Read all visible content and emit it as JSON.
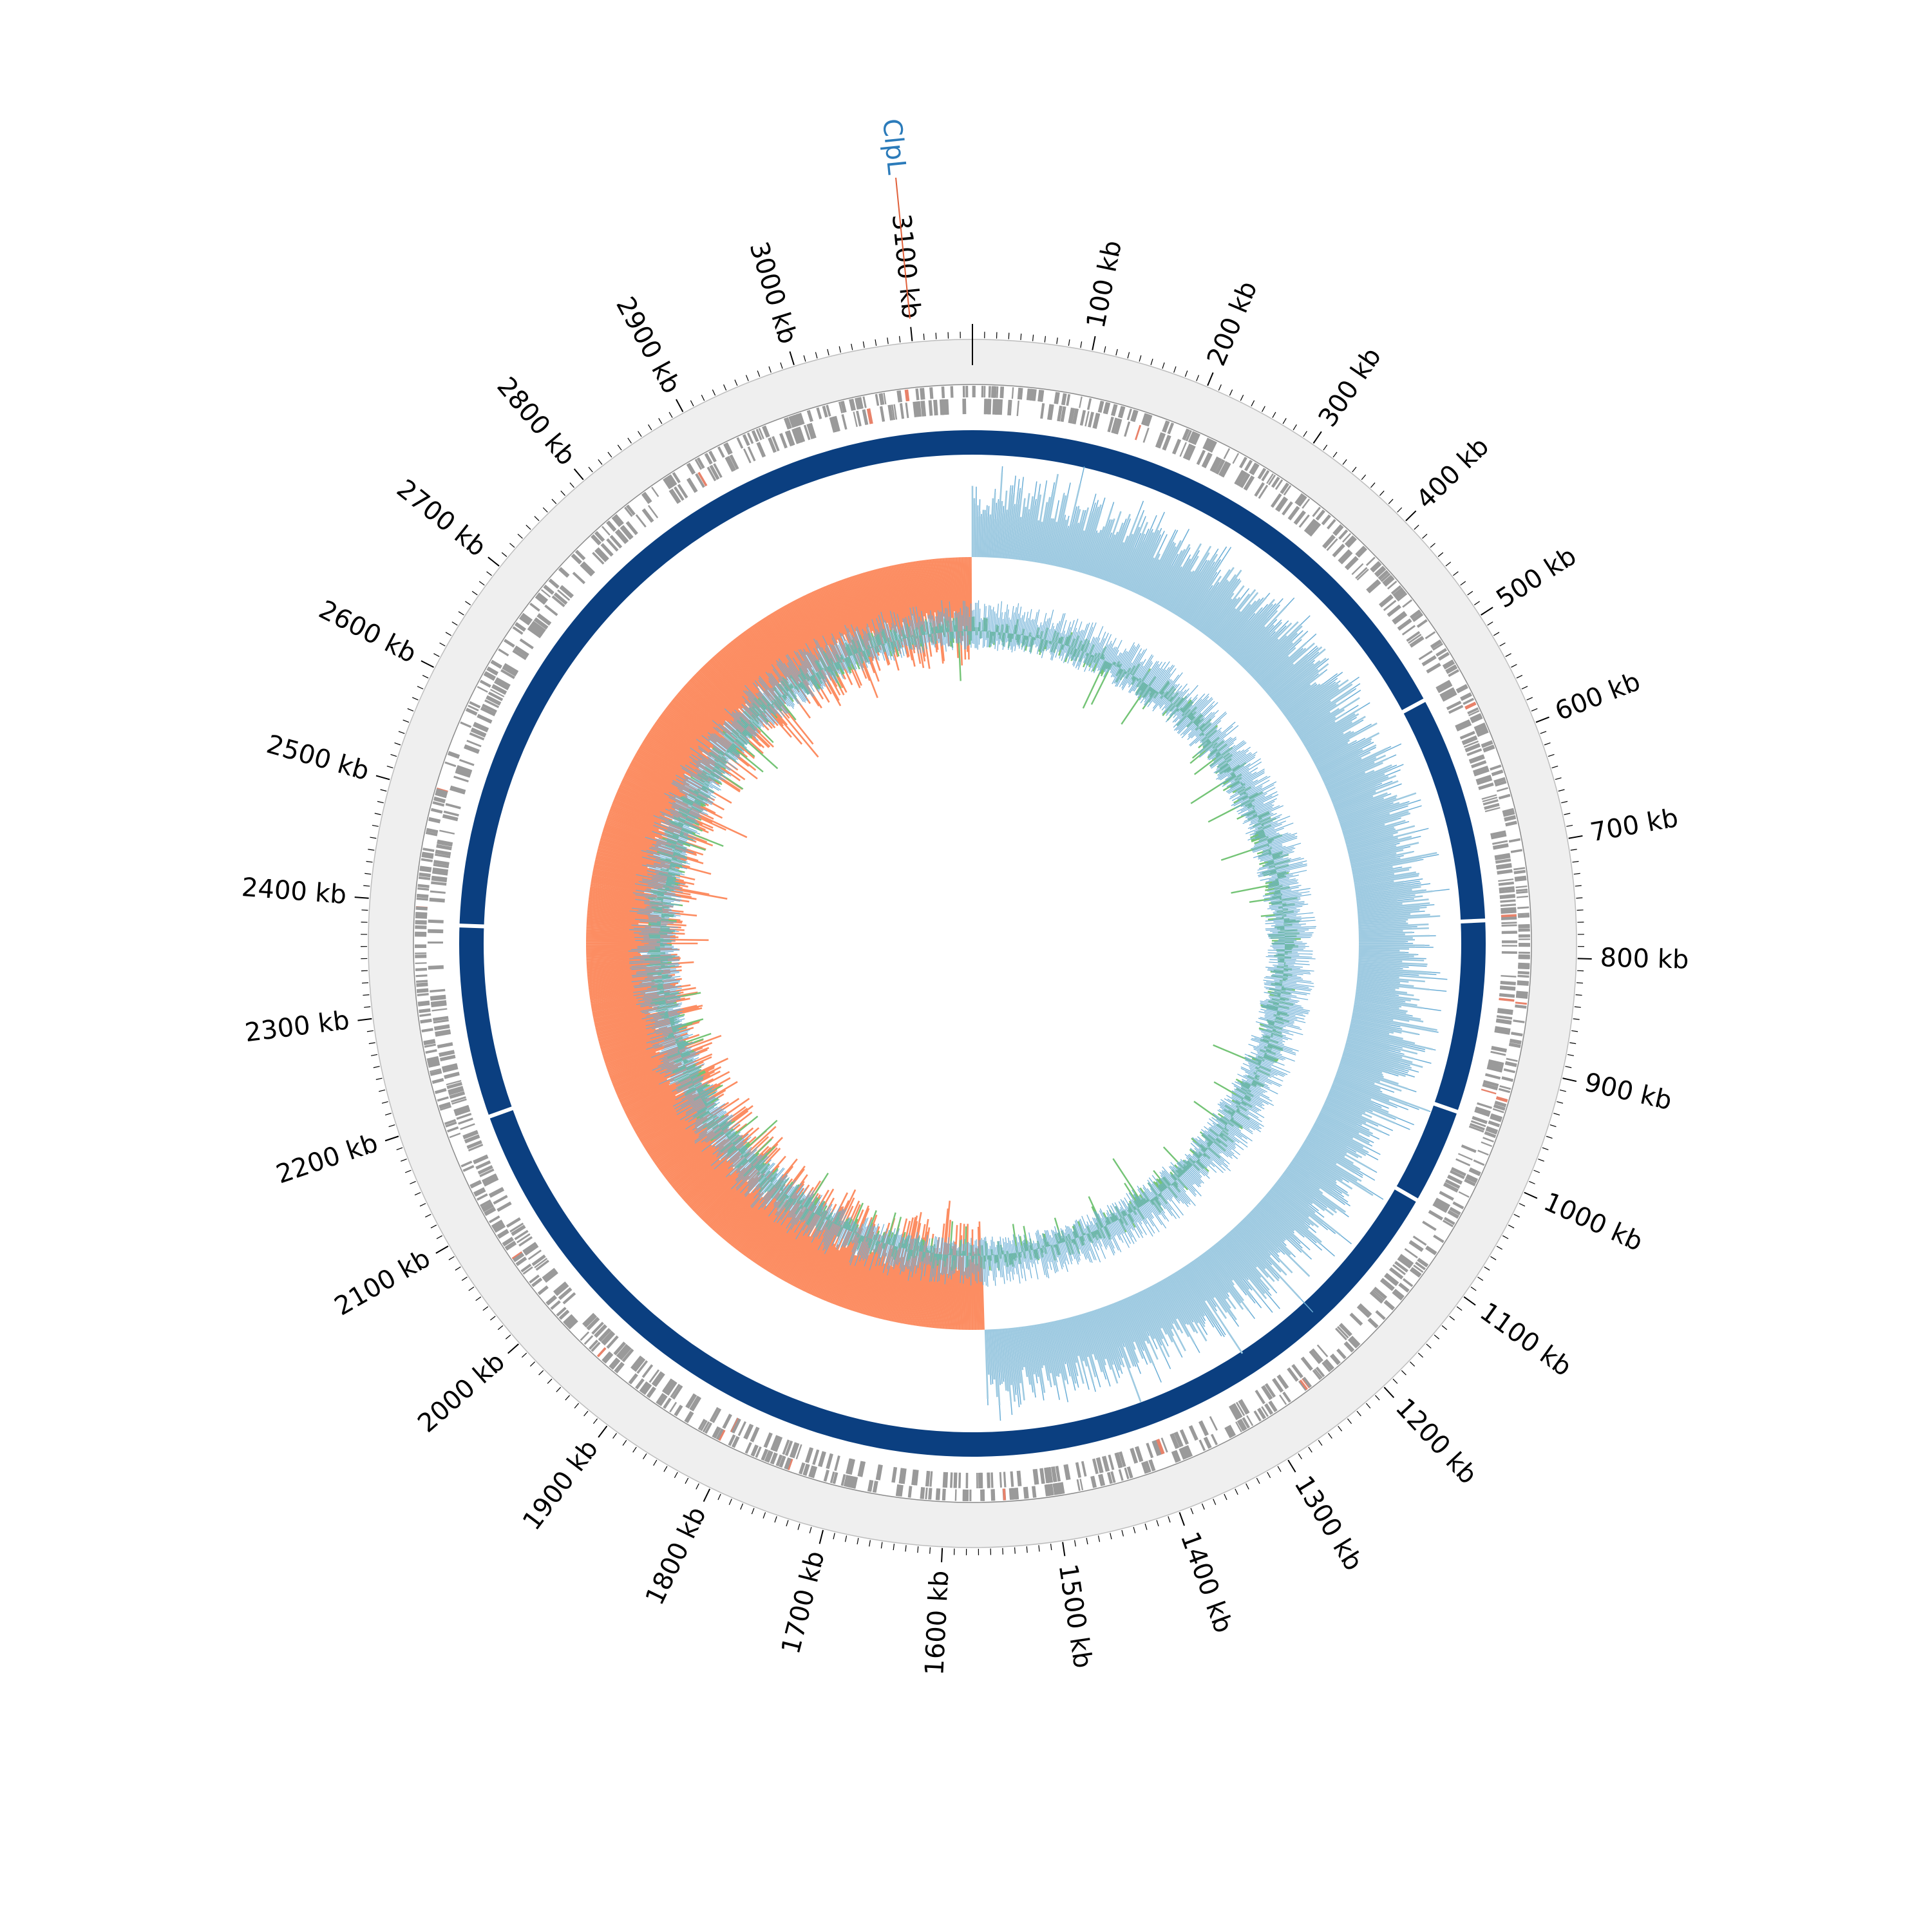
{
  "figure": {
    "type": "circular-genome-map",
    "genome_length_kb": 3150,
    "tick_labels": [
      "100 kb",
      "200 kb",
      "300 kb",
      "400 kb",
      "500 kb",
      "600 kb",
      "700 kb",
      "800 kb",
      "900 kb",
      "1000 kb",
      "1100 kb",
      "1200 kb",
      "1300 kb",
      "1400 kb",
      "1500 kb",
      "1600 kb",
      "1700 kb",
      "1800 kb",
      "1900 kb",
      "2000 kb",
      "2100 kb",
      "2200 kb",
      "2300 kb",
      "2400 kb",
      "2500 kb",
      "2600 kb",
      "2700 kb",
      "2800 kb",
      "2900 kb",
      "3000 kb",
      "3100 kb"
    ],
    "tick_positions_kb": [
      100,
      200,
      300,
      400,
      500,
      600,
      700,
      800,
      900,
      1000,
      1100,
      1200,
      1300,
      1400,
      1500,
      1600,
      1700,
      1800,
      1900,
      2000,
      2100,
      2200,
      2300,
      2400,
      2500,
      2600,
      2700,
      2800,
      2900,
      3000,
      3100
    ],
    "highlight_gene": {
      "label": "ClpL",
      "position_kb": 3100,
      "color": "#2b7bba"
    },
    "colors": {
      "ring_background": "#efefef",
      "gene_features": "#9a9a9a",
      "gene_features_highlight": "#e8826a",
      "backbone": "#0b3f80",
      "gc_skew_positive": "#9ecae1",
      "gc_skew_positive_line": "#6baed6",
      "gc_skew_negative": "#fc8d62",
      "gc_content_fill": "#74c476",
      "gc_content_line": "#6baed6"
    },
    "backbone_gaps_kb": [
      540,
      2190,
      765,
      955,
      2380,
      1050
    ]
  }
}
